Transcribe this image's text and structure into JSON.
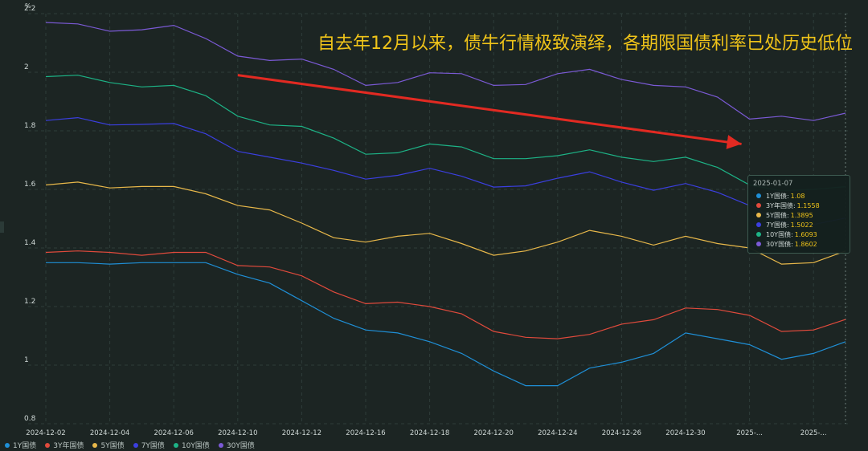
{
  "headline": "自去年12月以来，债牛行情极致演绎，各期限国债利率已处历史低位",
  "chart_data": {
    "type": "line",
    "yunit": "%",
    "ylim": [
      0.8,
      2.2
    ],
    "yticks": [
      0.8,
      1,
      1.2,
      1.4,
      1.6,
      1.8,
      2,
      2.2
    ],
    "ytick_labels": [
      "0.8",
      "1",
      "1.2",
      "1.4",
      "1.6",
      "1.8",
      "2",
      "2.2"
    ],
    "grid": true,
    "legend_position": "bottom-left",
    "x": [
      "2024-12-02",
      "2024-12-03",
      "2024-12-04",
      "2024-12-05",
      "2024-12-06",
      "2024-12-09",
      "2024-12-10",
      "2024-12-11",
      "2024-12-12",
      "2024-12-13",
      "2024-12-16",
      "2024-12-17",
      "2024-12-18",
      "2024-12-19",
      "2024-12-20",
      "2024-12-23",
      "2024-12-24",
      "2024-12-25",
      "2024-12-26",
      "2024-12-27",
      "2024-12-30",
      "2024-12-31",
      "2025-01-02",
      "2025-01-03",
      "2025-01-06",
      "2025-01-07"
    ],
    "xtick_labels": [
      "2024-12-02",
      "2024-12-04",
      "2024-12-06",
      "2024-12-10",
      "2024-12-12",
      "2024-12-16",
      "2024-12-18",
      "2024-12-20",
      "2024-12-24",
      "2024-12-26",
      "2024-12-30",
      "2025-...",
      "2025-..."
    ],
    "series": [
      {
        "name": "1Y国债",
        "color": "#1f8fd6",
        "values": [
          1.35,
          1.35,
          1.345,
          1.35,
          1.35,
          1.35,
          1.31,
          1.28,
          1.22,
          1.16,
          1.12,
          1.11,
          1.08,
          1.04,
          0.98,
          0.93,
          0.93,
          0.99,
          1.01,
          1.04,
          1.11,
          1.09,
          1.07,
          1.02,
          1.04,
          1.08
        ]
      },
      {
        "name": "3Y年国债",
        "color": "#e04a3c",
        "values": [
          1.385,
          1.39,
          1.385,
          1.375,
          1.385,
          1.385,
          1.34,
          1.335,
          1.305,
          1.25,
          1.21,
          1.215,
          1.2,
          1.175,
          1.115,
          1.095,
          1.09,
          1.105,
          1.14,
          1.155,
          1.195,
          1.19,
          1.17,
          1.115,
          1.12,
          1.1558
        ]
      },
      {
        "name": "5Y国债",
        "color": "#e8b84a",
        "values": [
          1.615,
          1.625,
          1.605,
          1.61,
          1.61,
          1.585,
          1.545,
          1.53,
          1.485,
          1.435,
          1.42,
          1.44,
          1.45,
          1.415,
          1.375,
          1.39,
          1.42,
          1.46,
          1.44,
          1.41,
          1.44,
          1.415,
          1.4,
          1.345,
          1.35,
          1.3895
        ]
      },
      {
        "name": "7Y国债",
        "color": "#3b3fe0",
        "values": [
          1.835,
          1.845,
          1.82,
          1.822,
          1.825,
          1.79,
          1.73,
          1.71,
          1.69,
          1.665,
          1.635,
          1.648,
          1.672,
          1.645,
          1.608,
          1.612,
          1.638,
          1.66,
          1.625,
          1.597,
          1.62,
          1.59,
          1.545,
          1.49,
          1.48,
          1.5022
        ]
      },
      {
        "name": "10Y国债",
        "color": "#1db386",
        "values": [
          1.985,
          1.99,
          1.965,
          1.95,
          1.955,
          1.92,
          1.85,
          1.82,
          1.815,
          1.775,
          1.72,
          1.725,
          1.755,
          1.745,
          1.705,
          1.705,
          1.715,
          1.735,
          1.71,
          1.695,
          1.71,
          1.675,
          1.615,
          1.595,
          1.6,
          1.6093
        ]
      },
      {
        "name": "30Y国债",
        "color": "#7b5ad6",
        "values": [
          2.17,
          2.165,
          2.14,
          2.145,
          2.16,
          2.115,
          2.055,
          2.04,
          2.045,
          2.01,
          1.955,
          1.965,
          1.998,
          1.995,
          1.955,
          1.958,
          1.995,
          2.01,
          1.975,
          1.955,
          1.95,
          1.915,
          1.84,
          1.85,
          1.835,
          1.8602
        ]
      }
    ],
    "annotation_arrow": {
      "from_date": "2024-12-10",
      "from_value": 1.99,
      "to_date": "2025-01-02",
      "to_value": 1.755,
      "color": "#e22a22"
    },
    "tooltip": {
      "date": "2025-01-07",
      "rows": [
        {
          "name": "1Y国债",
          "value": "1.08",
          "color": "#1f8fd6"
        },
        {
          "name": "3Y年国债",
          "value": "1.1558",
          "color": "#e04a3c"
        },
        {
          "name": "5Y国债",
          "value": "1.3895",
          "color": "#e8b84a"
        },
        {
          "name": "7Y国债",
          "value": "1.5022",
          "color": "#3b3fe0"
        },
        {
          "name": "10Y国债",
          "value": "1.6093",
          "color": "#1db386"
        },
        {
          "name": "30Y国债",
          "value": "1.8602",
          "color": "#7b5ad6"
        }
      ]
    }
  }
}
